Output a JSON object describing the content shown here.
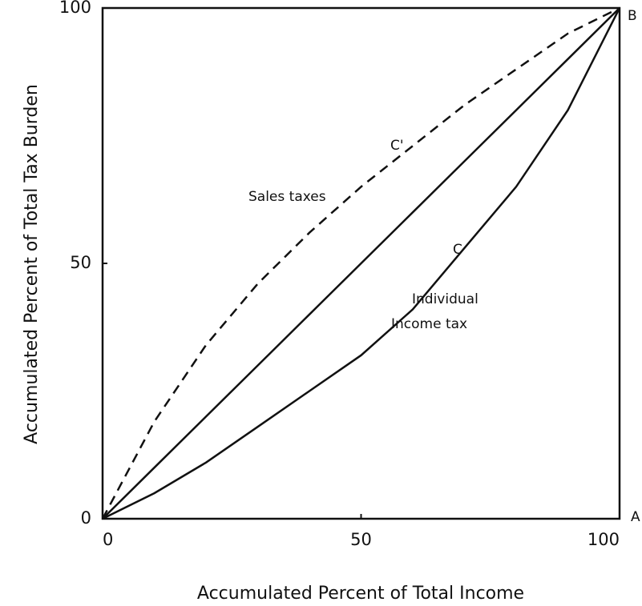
{
  "chart_data": {
    "type": "line",
    "x_label": "Accumulated Percent of Total Income",
    "y_label": "Accumulated Percent of Total Tax Burden",
    "x": [
      0,
      10,
      20,
      30,
      40,
      50,
      60,
      70,
      80,
      90,
      100
    ],
    "series": [
      {
        "color": "#111111",
        "line_style": "solid",
        "values": [
          0,
          10,
          20,
          30,
          40,
          50,
          60,
          70,
          80,
          90,
          100
        ]
      },
      {
        "name": "C'",
        "color": "#111111",
        "line_style": "dashed",
        "values": [
          0,
          19,
          34,
          46,
          56,
          65,
          73,
          81,
          88,
          95,
          100
        ]
      },
      {
        "name": "C",
        "color": "#111111",
        "line_style": "solid",
        "values": [
          0,
          5,
          11,
          18,
          25,
          32,
          41,
          53,
          65,
          80,
          100
        ]
      }
    ],
    "annotations": [
      "Sales taxes",
      "Individual",
      "Income tax",
      "B",
      "A"
    ],
    "xlim": [
      0,
      100
    ],
    "ylim": [
      0,
      100
    ],
    "xticks": [
      0,
      50,
      100
    ],
    "yticks": [
      0,
      50,
      100
    ],
    "grid": false
  }
}
